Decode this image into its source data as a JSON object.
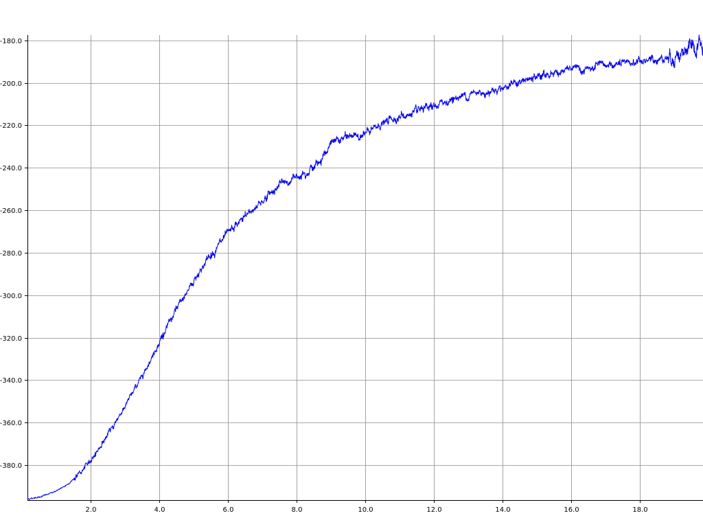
{
  "chart_data": {
    "type": "line",
    "title": "",
    "xlabel": "",
    "ylabel": "",
    "xlim": [
      0.15,
      19.85
    ],
    "ylim": [
      -396.5,
      -177.5
    ],
    "grid": true,
    "x_ticks": [
      2.0,
      4.0,
      6.0,
      8.0,
      10.0,
      12.0,
      14.0,
      16.0,
      18.0
    ],
    "x_tick_labels": [
      "2.0",
      "4.0",
      "6.0",
      "8.0",
      "10.0",
      "12.0",
      "14.0",
      "16.0",
      "18.0"
    ],
    "y_ticks": [
      -180.0,
      -200.0,
      -220.0,
      -240.0,
      -260.0,
      -280.0,
      -300.0,
      -320.0,
      -340.0,
      -360.0,
      -380.0
    ],
    "y_tick_labels": [
      "-180.0",
      "-200.0",
      "-220.0",
      "-240.0",
      "-260.0",
      "-280.0",
      "-300.0",
      "-320.0",
      "-340.0",
      "-360.0",
      "-380.0"
    ],
    "series": [
      {
        "color": "#0000ee",
        "x": [
          0.15,
          0.5,
          0.8,
          1.0,
          1.2,
          1.4,
          1.6,
          1.8,
          2.0,
          2.2,
          2.4,
          2.6,
          2.8,
          3.0,
          3.2,
          3.4,
          3.6,
          3.8,
          4.0,
          4.2,
          4.4,
          4.6,
          4.8,
          5.0,
          5.2,
          5.4,
          5.6,
          5.8,
          6.0,
          6.2,
          6.4,
          6.6,
          6.8,
          7.0,
          7.2,
          7.4,
          7.6,
          7.8,
          8.0,
          8.2,
          8.4,
          8.6,
          8.8,
          9.0,
          9.2,
          9.4,
          9.6,
          9.8,
          10.0,
          10.2,
          10.4,
          10.6,
          10.8,
          11.0,
          11.2,
          11.4,
          11.6,
          11.8,
          12.0,
          12.2,
          12.4,
          12.6,
          12.8,
          13.0,
          13.2,
          13.4,
          13.6,
          13.8,
          14.0,
          14.2,
          14.4,
          14.6,
          14.8,
          15.0,
          15.2,
          15.4,
          15.6,
          15.8,
          16.0,
          16.2,
          16.4,
          16.6,
          16.8,
          17.0,
          17.2,
          17.4,
          17.6,
          17.8,
          18.0,
          18.2,
          18.4,
          18.6,
          18.8,
          19.0,
          19.2,
          19.4,
          19.6,
          19.85
        ],
        "y": [
          -396.0,
          -395.0,
          -393.5,
          -392.0,
          -390.5,
          -388.0,
          -385.0,
          -382.0,
          -377.5,
          -373.0,
          -368.0,
          -363.0,
          -357.5,
          -352.0,
          -346.5,
          -340.5,
          -334.5,
          -328.5,
          -322.0,
          -316.0,
          -310.0,
          -304.0,
          -298.5,
          -293.0,
          -288.0,
          -283.0,
          -279.0,
          -275.0,
          -271.5,
          -268.0,
          -264.5,
          -261.5,
          -258.5,
          -255.5,
          -252.5,
          -249.5,
          -247.0,
          -246.5,
          -244.0,
          -242.0,
          -240.5,
          -238.5,
          -233.5,
          -229.0,
          -227.0,
          -226.0,
          -225.0,
          -224.5,
          -224.0,
          -222.5,
          -220.0,
          -218.5,
          -217.0,
          -216.0,
          -215.5,
          -214.5,
          -213.5,
          -212.5,
          -211.5,
          -210.0,
          -208.5,
          -207.5,
          -206.5,
          -205.5,
          -205.0,
          -204.5,
          -204.0,
          -203.0,
          -202.0,
          -201.0,
          -200.0,
          -199.5,
          -198.5,
          -197.5,
          -196.5,
          -195.5,
          -195.0,
          -194.5,
          -193.5,
          -193.5,
          -194.0,
          -193.5,
          -192.5,
          -192.0,
          -191.5,
          -191.5,
          -191.0,
          -190.5,
          -190.0,
          -189.5,
          -189.0,
          -188.5,
          -188.0,
          -187.5,
          -186.0,
          -185.0,
          -184.5,
          -183.5
        ]
      }
    ]
  }
}
